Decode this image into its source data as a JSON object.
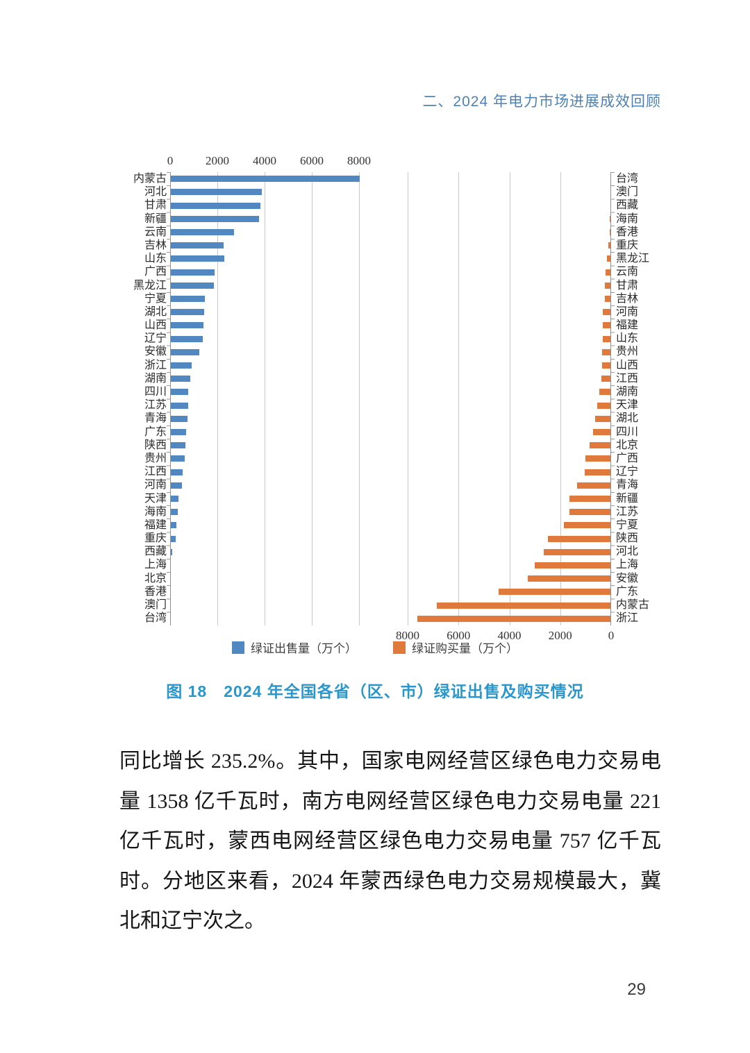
{
  "header": {
    "text": "二、2024 年电力市场进展成效回顾"
  },
  "colors": {
    "sell_bar": "#5288c1",
    "buy_bar": "#df7a3c",
    "gridline": "#c9c9c9",
    "axis_line": "#8f8f8f",
    "header_blue": "#4d82b4",
    "caption_blue": "#2a97cc"
  },
  "chart_data": {
    "type": "bar",
    "orientation": "horizontal-mirrored",
    "title": "图 18　2024 年全国各省（区、市）绿证出售及购买情况",
    "unit": "万个",
    "xlim": [
      0,
      8000
    ],
    "x_ticks": [
      0,
      2000,
      4000,
      6000,
      8000
    ],
    "grid": true,
    "legend_position": "bottom",
    "series": [
      {
        "name": "绿证出售量（万个）",
        "color": "#5288c1",
        "axis": "top",
        "categories": [
          "内蒙古",
          "河北",
          "甘肃",
          "新疆",
          "云南",
          "吉林",
          "山东",
          "广西",
          "黑龙江",
          "宁夏",
          "湖北",
          "山西",
          "辽宁",
          "安徽",
          "浙江",
          "湖南",
          "四川",
          "江苏",
          "青海",
          "广东",
          "陕西",
          "贵州",
          "江西",
          "河南",
          "天津",
          "海南",
          "福建",
          "重庆",
          "西藏",
          "上海",
          "北京",
          "香港",
          "澳门",
          "台湾"
        ],
        "values": [
          8000,
          3860,
          3800,
          3730,
          2680,
          2230,
          2250,
          1860,
          1810,
          1440,
          1410,
          1390,
          1350,
          1220,
          890,
          820,
          730,
          730,
          710,
          640,
          615,
          590,
          500,
          460,
          320,
          280,
          230,
          200,
          50,
          0,
          0,
          0,
          0,
          0
        ]
      },
      {
        "name": "绿证购买量（万个）",
        "color": "#df7a3c",
        "axis": "bottom",
        "categories": [
          "台湾",
          "澳门",
          "西藏",
          "海南",
          "香港",
          "重庆",
          "黑龙江",
          "云南",
          "甘肃",
          "吉林",
          "河南",
          "福建",
          "山东",
          "贵州",
          "山西",
          "江西",
          "湖南",
          "天津",
          "湖北",
          "四川",
          "北京",
          "广西",
          "辽宁",
          "青海",
          "新疆",
          "江苏",
          "宁夏",
          "陕西",
          "河北",
          "上海",
          "安徽",
          "广东",
          "内蒙古",
          "浙江"
        ],
        "values": [
          0,
          0,
          0,
          20,
          30,
          70,
          150,
          180,
          210,
          230,
          300,
          290,
          290,
          320,
          340,
          365,
          430,
          530,
          590,
          680,
          820,
          970,
          1000,
          1300,
          1610,
          1620,
          1820,
          2470,
          2620,
          2980,
          3240,
          4390,
          6840,
          7590
        ]
      }
    ]
  },
  "legend": {
    "items": [
      {
        "label": "绿证出售量（万个）",
        "color": "#5288c1"
      },
      {
        "label": "绿证购买量（万个）",
        "color": "#df7a3c"
      }
    ]
  },
  "caption": "图 18　2024 年全国各省（区、市）绿证出售及购买情况",
  "paragraph": {
    "lines": [
      "同比增长 235.2%。其中，国家电网经营区绿色电力交易电",
      "量 1358 亿千瓦时，南方电网经营区绿色电力交易电量 221",
      "亿千瓦时，蒙西电网经营区绿色电力交易电量 757 亿千瓦",
      "时。分地区来看，2024 年蒙西绿色电力交易规模最大，冀",
      "北和辽宁次之。"
    ]
  },
  "page_number": "29"
}
